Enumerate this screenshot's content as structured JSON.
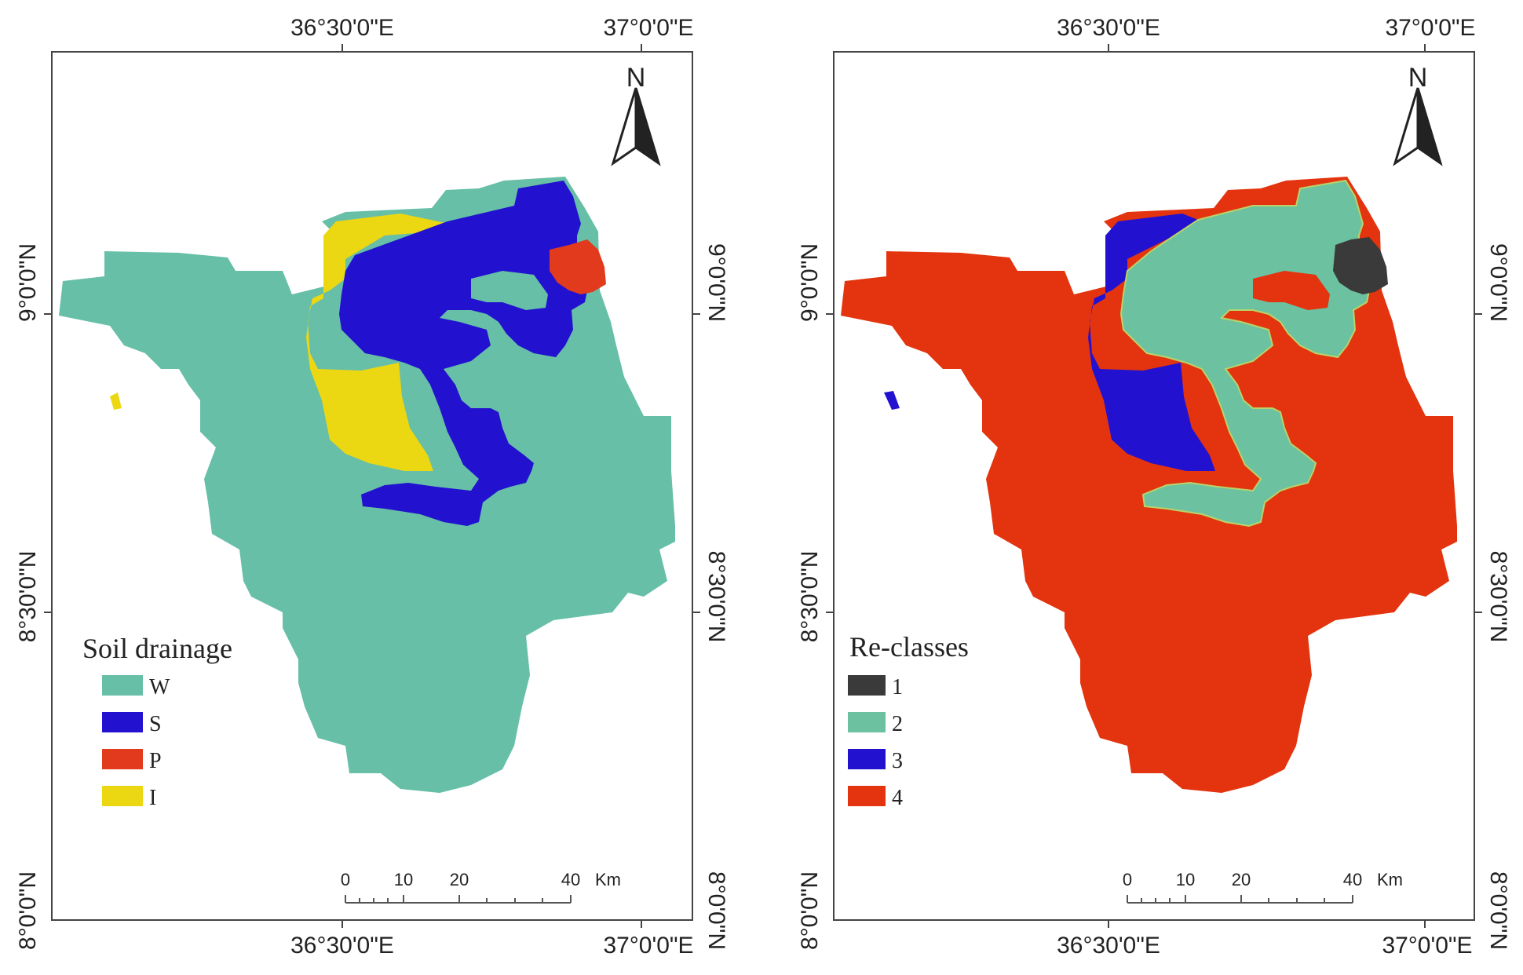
{
  "colors": {
    "W": "#66bfa6",
    "S": "#2212d0",
    "P": "#e23a1c",
    "I": "#ecd713",
    "class1": "#3a3a3a",
    "class2": "#6cc1a0",
    "class3": "#2212d0",
    "class4": "#e3340f",
    "border": "#444444"
  },
  "coords": {
    "lon_3630": "36°30'0\"E",
    "lon_3700": "37°0'0\"E",
    "lat_900": "9°0'0\"N",
    "lat_830": "8°30'0\"N",
    "lat_800": "8°0'0\"N"
  },
  "north_label": "N",
  "scale": {
    "t0": "0",
    "t10": "10",
    "t20": "20",
    "t40": "40",
    "unit": "Km"
  },
  "left_map": {
    "legend_title": "Soil drainage",
    "legend": [
      {
        "label": "W",
        "color": "#66bfa6"
      },
      {
        "label": "S",
        "color": "#2212d0"
      },
      {
        "label": "P",
        "color": "#e23a1c"
      },
      {
        "label": "I",
        "color": "#ecd713"
      }
    ]
  },
  "right_map": {
    "legend_title": "Re-classes",
    "legend": [
      {
        "label": "1",
        "color": "#3a3a3a"
      },
      {
        "label": "2",
        "color": "#6cc1a0"
      },
      {
        "label": "3",
        "color": "#2212d0"
      },
      {
        "label": "4",
        "color": "#e3340f"
      }
    ]
  }
}
